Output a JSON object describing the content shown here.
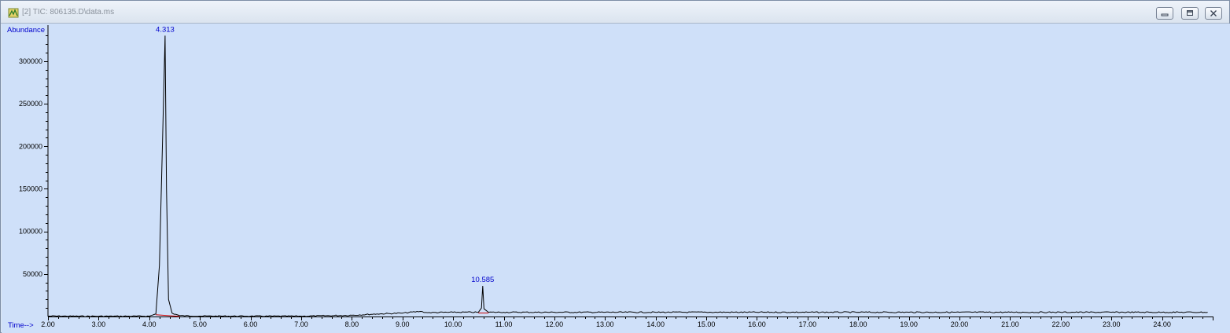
{
  "window": {
    "title": "[2] TIC: 806135.D\\data.ms",
    "buttons": {
      "minimize": "minimize-icon",
      "restore": "restore-icon",
      "close": "close-icon"
    }
  },
  "chart_data": {
    "type": "line",
    "ylabel": "Abundance",
    "xlabel": "Time-->",
    "xlim": [
      2.0,
      25.0
    ],
    "ylim": [
      0,
      335000
    ],
    "x_ticks": [
      2.0,
      3.0,
      4.0,
      5.0,
      6.0,
      7.0,
      8.0,
      9.0,
      10.0,
      11.0,
      12.0,
      13.0,
      14.0,
      15.0,
      16.0,
      17.0,
      18.0,
      19.0,
      20.0,
      21.0,
      22.0,
      23.0,
      24.0
    ],
    "x_tick_labels": [
      "2.00",
      "3.00",
      "4.00",
      "5.00",
      "6.00",
      "7.00",
      "8.00",
      "9.00",
      "10.00",
      "11.00",
      "12.00",
      "13.00",
      "14.00",
      "15.00",
      "16.00",
      "17.00",
      "18.00",
      "19.00",
      "20.00",
      "21.00",
      "22.00",
      "23.00",
      "24.00"
    ],
    "y_ticks": [
      50000,
      100000,
      150000,
      200000,
      250000,
      300000
    ],
    "y_tick_labels": [
      "50000",
      "100000",
      "150000",
      "200000",
      "250000",
      "300000"
    ],
    "grid": false,
    "series": [
      {
        "values_x": [
          2.0,
          3.0,
          4.0,
          4.13,
          4.2,
          4.26,
          4.313,
          4.34,
          4.38,
          4.45,
          4.6,
          5.0,
          6.0,
          7.0,
          8.0,
          8.5,
          9.0,
          9.35,
          9.5,
          10.0,
          10.5,
          10.56,
          10.585,
          10.61,
          10.7,
          11.0,
          12.0,
          13.0,
          14.0,
          15.0,
          16.0,
          17.0,
          18.0,
          19.0,
          20.0,
          21.0,
          22.0,
          23.0,
          24.0,
          24.9
        ],
        "values_y": [
          500,
          300,
          400,
          3000,
          60000,
          200000,
          330000,
          150000,
          20000,
          4000,
          1000,
          500,
          400,
          400,
          1500,
          3000,
          4000,
          6000,
          4500,
          5000,
          5000,
          10000,
          36000,
          9000,
          5000,
          5000,
          5000,
          5000,
          5000,
          5000,
          5000,
          5000,
          5000,
          5000,
          5000,
          5000,
          5000,
          5000,
          5000,
          5000
        ]
      }
    ],
    "peaks": [
      {
        "label": "4.313",
        "x": 4.313,
        "y": 330000
      },
      {
        "label": "10.585",
        "x": 10.585,
        "y": 36000
      }
    ],
    "colors": {
      "background": "#cfe0f9",
      "trace": "#000000",
      "peak_label": "#0000cc",
      "integration_baseline": "#cc0000"
    }
  }
}
